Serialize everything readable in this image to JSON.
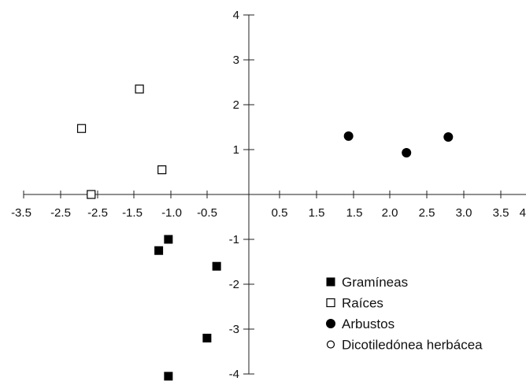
{
  "chart_data": {
    "type": "scatter",
    "title": "",
    "xlabel": "",
    "ylabel": "",
    "xlim": [
      -3.5,
      4.0
    ],
    "ylim": [
      -4,
      4
    ],
    "grid": false,
    "legend_position": "bottom-right",
    "x_tick_labels": [
      "-3.5",
      "-2.5",
      "-2.5",
      "-1.5",
      "-1.0",
      "-0.5",
      "0.5",
      "1.5",
      "1.5",
      "2.0",
      "2.5",
      "3.0",
      "3.5",
      "4"
    ],
    "y_ticks": [
      4,
      3,
      2,
      1,
      -1,
      -2,
      -3,
      -4
    ],
    "y_tick_labels": [
      "4",
      "3",
      "2",
      "1",
      "-1",
      "-2",
      "-3",
      "-4"
    ],
    "series": [
      {
        "name": "Gramíneas",
        "marker": "filled-square",
        "color": "#000000",
        "points": [
          [
            -1.25,
            -1.0
          ],
          [
            -1.4,
            -1.25
          ],
          [
            -0.5,
            -1.6
          ],
          [
            -0.65,
            -3.2
          ],
          [
            -1.25,
            -4.05
          ]
        ]
      },
      {
        "name": "Raíces",
        "marker": "open-square",
        "color": "#000000",
        "points": [
          [
            -1.7,
            2.35
          ],
          [
            -2.6,
            1.47
          ],
          [
            -1.35,
            0.55
          ],
          [
            -2.45,
            0.0
          ]
        ]
      },
      {
        "name": "Arbustos",
        "marker": "filled-circle",
        "color": "#000000",
        "points": [
          [
            1.55,
            1.3
          ],
          [
            2.45,
            0.93
          ],
          [
            3.1,
            1.28
          ]
        ]
      },
      {
        "name": "Dicotiledónea herbácea",
        "marker": "open-circle",
        "color": "#000000",
        "points": []
      }
    ]
  }
}
